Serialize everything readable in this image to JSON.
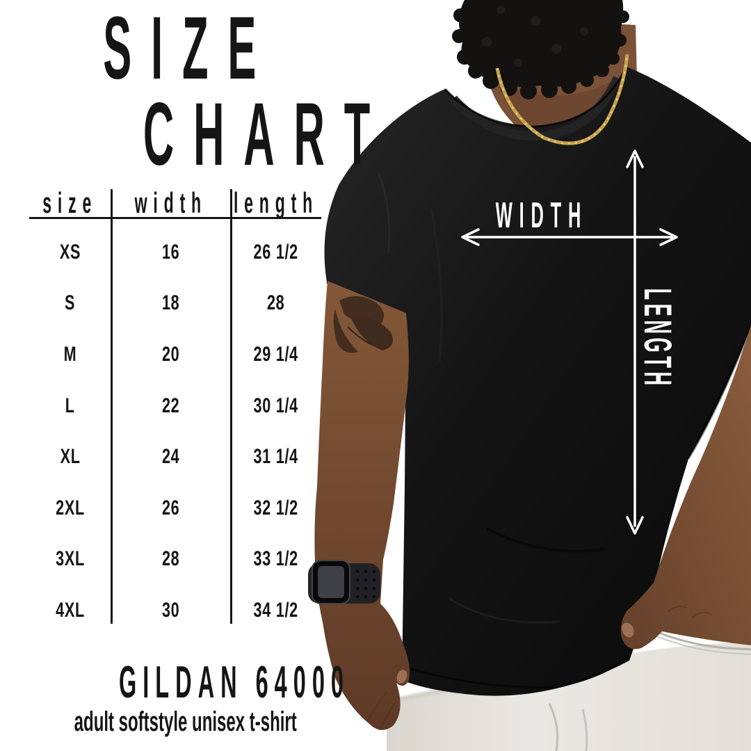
{
  "title": {
    "line1": "SIZE",
    "line2": "CHART"
  },
  "size_table": {
    "headers": {
      "size": "size",
      "width": "width",
      "length": "length"
    },
    "rows": [
      {
        "size": "XS",
        "width": "16",
        "length": "26 1/2"
      },
      {
        "size": "S",
        "width": "18",
        "length": "28"
      },
      {
        "size": "M",
        "width": "20",
        "length": "29 1/4"
      },
      {
        "size": "L",
        "width": "22",
        "length": "30 1/4"
      },
      {
        "size": "XL",
        "width": "24",
        "length": "31 1/4"
      },
      {
        "size": "2XL",
        "width": "26",
        "length": "32 1/2"
      },
      {
        "size": "3XL",
        "width": "28",
        "length": "33 1/2"
      },
      {
        "size": "4XL",
        "width": "30",
        "length": "34 1/2"
      }
    ]
  },
  "footer": {
    "product_name": "GILDAN 64000",
    "product_description": "adult softstyle unisex t-shirt"
  },
  "photo_overlay": {
    "width_label": "WIDTH",
    "length_label": "LENGTH"
  },
  "colors": {
    "text_black": "#151515",
    "arrow_white": "#ffffff",
    "tshirt_black": "#101010",
    "pants_gray": "#e5e2db",
    "skin_brown": "#7b5138",
    "chain_gold": "#c5a24b"
  },
  "chart_data": {
    "type": "table",
    "title": "SIZE CHART",
    "columns": [
      "size",
      "width",
      "length"
    ],
    "rows": [
      [
        "XS",
        "16",
        "26 1/2"
      ],
      [
        "S",
        "18",
        "28"
      ],
      [
        "M",
        "20",
        "29 1/4"
      ],
      [
        "L",
        "22",
        "30 1/4"
      ],
      [
        "XL",
        "24",
        "31 1/4"
      ],
      [
        "2XL",
        "26",
        "32 1/2"
      ],
      [
        "3XL",
        "28",
        "33 1/2"
      ],
      [
        "4XL",
        "30",
        "34 1/2"
      ]
    ],
    "footnote_product": "GILDAN 64000",
    "footnote_description": "adult softstyle unisex t-shirt"
  }
}
